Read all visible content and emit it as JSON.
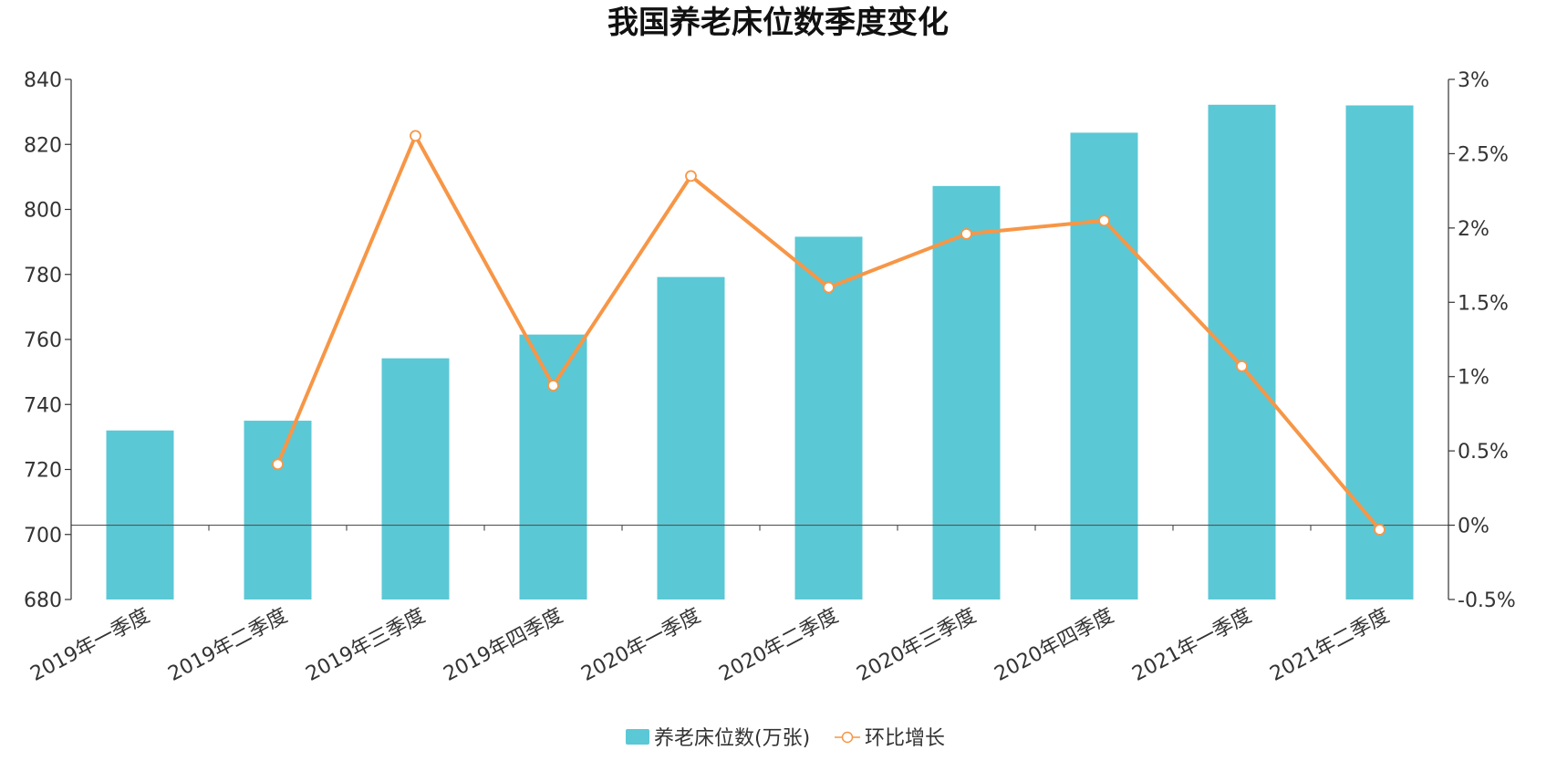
{
  "chart_data": {
    "type": "bar+line",
    "title": "我国养老床位数季度变化",
    "categories": [
      "2019年一季度",
      "2019年二季度",
      "2019年三季度",
      "2019年四季度",
      "2020年一季度",
      "2020年二季度",
      "2020年三季度",
      "2020年四季度",
      "2021年一季度",
      "2021年二季度"
    ],
    "series": [
      {
        "name": "养老床位数(万张)",
        "type": "bar",
        "axis": "left",
        "color": "#5bc8d5",
        "values": [
          732,
          735,
          754.2,
          761.5,
          779.2,
          791.6,
          807.2,
          823.6,
          832.2,
          832.0
        ]
      },
      {
        "name": "环比增长",
        "type": "line",
        "axis": "right",
        "color": "#f79646",
        "values": [
          null,
          0.41,
          2.62,
          0.94,
          2.35,
          1.6,
          1.96,
          2.05,
          1.07,
          -0.03
        ]
      }
    ],
    "y_left": {
      "min": 680,
      "max": 840,
      "ticks": [
        680,
        700,
        720,
        740,
        760,
        780,
        800,
        820,
        840
      ],
      "tick_labels": [
        "680",
        "700",
        "720",
        "740",
        "760",
        "780",
        "800",
        "820",
        "840"
      ]
    },
    "y_right": {
      "min": -0.5,
      "max": 3,
      "ticks": [
        -0.5,
        0,
        0.5,
        1,
        1.5,
        2,
        2.5,
        3
      ],
      "tick_labels": [
        "-0.5%",
        "0%",
        "0.5%",
        "1%",
        "1.5%",
        "2%",
        "2.5%",
        "3%"
      ]
    },
    "legend_position": "bottom-center",
    "grid": false
  }
}
